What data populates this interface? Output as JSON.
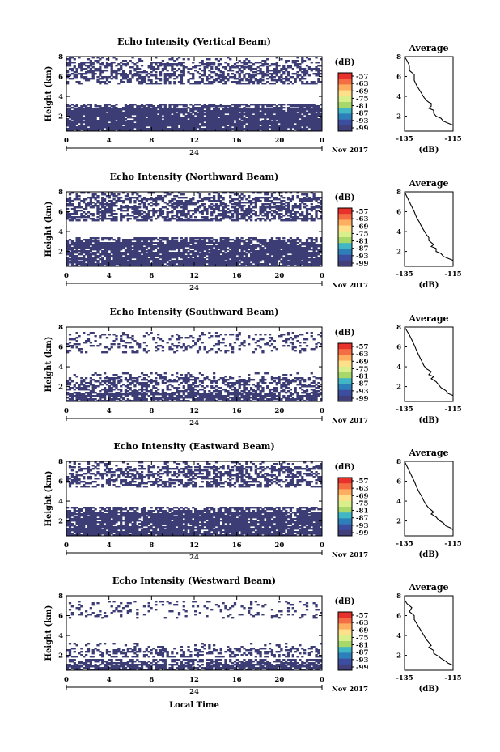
{
  "date_label": "24",
  "month_label": "Nov 2017",
  "xlabel_bottom": "Local Time",
  "colorbar": {
    "unit": "(dB)",
    "ticks": [
      "-57",
      "-63",
      "-69",
      "-75",
      "-81",
      "-87",
      "-93",
      "-99"
    ],
    "colors": [
      "#e8312a",
      "#f46d43",
      "#fdae61",
      "#fee08b",
      "#d9ef8b",
      "#a6d96a",
      "#41b6c4",
      "#2c7fb8",
      "#3b4ea0",
      "#41407a"
    ]
  },
  "chart_data": [
    {
      "type": "heatmap",
      "title": "Echo Intensity (Vertical Beam)",
      "ylabel": "Height (km)",
      "xticks": [
        "0",
        "4",
        "8",
        "12",
        "16",
        "20",
        "0"
      ],
      "yticks": [
        "2",
        "4",
        "6",
        "8"
      ],
      "ylim": [
        0.5,
        8
      ],
      "xlim": [
        0,
        24
      ],
      "layers": [
        [
          0.5,
          3.2,
          0.08
        ],
        [
          5.2,
          7.9,
          0.52
        ]
      ],
      "average": {
        "title": "Average",
        "xlabel": "(dB)",
        "xticks": [
          "-135",
          "-115"
        ],
        "yticks": [
          "2",
          "4",
          "6",
          "8"
        ],
        "xlim": [
          -135,
          -115
        ],
        "ylim": [
          0.5,
          8
        ],
        "profile": [
          [
            -135,
            8
          ],
          [
            -134,
            7.6
          ],
          [
            -133,
            7.1
          ],
          [
            -133,
            6.6
          ],
          [
            -131,
            6.2
          ],
          [
            -131,
            5.6
          ],
          [
            -130,
            5.1
          ],
          [
            -129,
            4.7
          ],
          [
            -128,
            4.3
          ],
          [
            -127,
            3.9
          ],
          [
            -126,
            3.6
          ],
          [
            -125,
            3.4
          ],
          [
            -124,
            3.3
          ],
          [
            -124,
            3.0
          ],
          [
            -125,
            2.8
          ],
          [
            -123,
            2.6
          ],
          [
            -123,
            2.3
          ],
          [
            -122,
            2.0
          ],
          [
            -120,
            1.8
          ],
          [
            -119,
            1.5
          ],
          [
            -117,
            1.3
          ],
          [
            -115,
            1.1
          ]
        ]
      }
    },
    {
      "type": "heatmap",
      "title": "Echo Intensity (Northward Beam)",
      "ylabel": "Height (km)",
      "xticks": [
        "0",
        "4",
        "8",
        "12",
        "16",
        "20",
        "0"
      ],
      "yticks": [
        "2",
        "4",
        "6",
        "8"
      ],
      "ylim": [
        0.5,
        8
      ],
      "xlim": [
        0,
        24
      ],
      "layers": [
        [
          0.5,
          3.4,
          0.12
        ],
        [
          5.0,
          8.0,
          0.45
        ]
      ],
      "average": {
        "title": "Average",
        "xlabel": "(dB)",
        "xticks": [
          "-135",
          "-115"
        ],
        "yticks": [
          "2",
          "4",
          "6",
          "8"
        ],
        "xlim": [
          -135,
          -115
        ],
        "ylim": [
          0.5,
          8
        ],
        "profile": [
          [
            -135,
            8
          ],
          [
            -134,
            7.5
          ],
          [
            -133,
            7.0
          ],
          [
            -132,
            6.5
          ],
          [
            -131,
            6.0
          ],
          [
            -130,
            5.4
          ],
          [
            -129,
            5.0
          ],
          [
            -128,
            4.5
          ],
          [
            -127,
            4.1
          ],
          [
            -126,
            3.7
          ],
          [
            -125,
            3.4
          ],
          [
            -125,
            3.1
          ],
          [
            -124,
            2.9
          ],
          [
            -123,
            2.7
          ],
          [
            -124,
            2.5
          ],
          [
            -122,
            2.3
          ],
          [
            -122,
            2.0
          ],
          [
            -120,
            1.8
          ],
          [
            -119,
            1.5
          ],
          [
            -117,
            1.3
          ],
          [
            -115,
            1.1
          ]
        ]
      }
    },
    {
      "type": "heatmap",
      "title": "Echo Intensity (Southward Beam)",
      "ylabel": "Height (km)",
      "xticks": [
        "0",
        "4",
        "8",
        "12",
        "16",
        "20",
        "0"
      ],
      "yticks": [
        "2",
        "4",
        "6",
        "8"
      ],
      "ylim": [
        0.5,
        8
      ],
      "xlim": [
        0,
        24
      ],
      "layers": [
        [
          0.5,
          1.7,
          0.25
        ],
        [
          1.8,
          3.4,
          0.55
        ],
        [
          5.3,
          7.9,
          0.78
        ]
      ],
      "average": {
        "title": "Average",
        "xlabel": "(dB)",
        "xticks": [
          "-135",
          "-115"
        ],
        "yticks": [
          "2",
          "4",
          "6",
          "8"
        ],
        "xlim": [
          -135,
          -115
        ],
        "ylim": [
          0.5,
          8
        ],
        "profile": [
          [
            -135,
            8
          ],
          [
            -134,
            7.6
          ],
          [
            -133,
            7.2
          ],
          [
            -132,
            6.7
          ],
          [
            -131,
            6.2
          ],
          [
            -130,
            5.6
          ],
          [
            -129,
            5.1
          ],
          [
            -128,
            4.6
          ],
          [
            -127,
            4.1
          ],
          [
            -126,
            3.8
          ],
          [
            -124,
            3.5
          ],
          [
            -125,
            3.2
          ],
          [
            -123,
            3.0
          ],
          [
            -124,
            2.8
          ],
          [
            -122,
            2.5
          ],
          [
            -121,
            2.2
          ],
          [
            -120,
            1.9
          ],
          [
            -118,
            1.6
          ],
          [
            -117,
            1.3
          ],
          [
            -115,
            1.1
          ]
        ]
      }
    },
    {
      "type": "heatmap",
      "title": "Echo Intensity (Eastward Beam)",
      "ylabel": "Height (km)",
      "xticks": [
        "0",
        "4",
        "8",
        "12",
        "16",
        "20",
        "0"
      ],
      "yticks": [
        "2",
        "4",
        "6",
        "8"
      ],
      "ylim": [
        0.5,
        8
      ],
      "xlim": [
        0,
        24
      ],
      "layers": [
        [
          0.5,
          3.4,
          0.12
        ],
        [
          5.3,
          8.0,
          0.52
        ]
      ],
      "average": {
        "title": "Average",
        "xlabel": "(dB)",
        "xticks": [
          "-135",
          "-115"
        ],
        "yticks": [
          "2",
          "4",
          "6",
          "8"
        ],
        "xlim": [
          -135,
          -115
        ],
        "ylim": [
          0.5,
          8
        ],
        "profile": [
          [
            -135,
            8
          ],
          [
            -134,
            7.5
          ],
          [
            -133,
            7.0
          ],
          [
            -132,
            6.5
          ],
          [
            -131,
            6.0
          ],
          [
            -130,
            5.4
          ],
          [
            -129,
            4.9
          ],
          [
            -128,
            4.5
          ],
          [
            -127,
            4.0
          ],
          [
            -126,
            3.6
          ],
          [
            -125,
            3.3
          ],
          [
            -124,
            3.1
          ],
          [
            -123,
            2.9
          ],
          [
            -124,
            2.7
          ],
          [
            -122,
            2.4
          ],
          [
            -121,
            2.1
          ],
          [
            -119,
            1.8
          ],
          [
            -118,
            1.5
          ],
          [
            -116,
            1.3
          ],
          [
            -115,
            1.1
          ]
        ]
      }
    },
    {
      "type": "heatmap",
      "title": "Echo Intensity (Westward Beam)",
      "ylabel": "Height (km)",
      "xticks": [
        "0",
        "4",
        "8",
        "12",
        "16",
        "20",
        "0"
      ],
      "yticks": [
        "2",
        "4",
        "6",
        "8"
      ],
      "ylim": [
        0.5,
        8
      ],
      "xlim": [
        0,
        24
      ],
      "layers": [
        [
          0.5,
          1.6,
          0.22
        ],
        [
          1.7,
          3.2,
          0.6
        ],
        [
          5.6,
          7.9,
          0.85
        ]
      ],
      "average": {
        "title": "Average",
        "xlabel": "(dB)",
        "xticks": [
          "-135",
          "-115"
        ],
        "yticks": [
          "2",
          "4",
          "6",
          "8"
        ],
        "xlim": [
          -135,
          -115
        ],
        "ylim": [
          0.5,
          8
        ],
        "profile": [
          [
            -135,
            8
          ],
          [
            -135,
            7.6
          ],
          [
            -134,
            7.2
          ],
          [
            -132,
            6.8
          ],
          [
            -133,
            6.4
          ],
          [
            -131,
            6.0
          ],
          [
            -131,
            5.6
          ],
          [
            -130,
            5.2
          ],
          [
            -129,
            4.8
          ],
          [
            -128,
            4.4
          ],
          [
            -127,
            4.0
          ],
          [
            -126,
            3.6
          ],
          [
            -125,
            3.3
          ],
          [
            -124,
            3.0
          ],
          [
            -125,
            2.8
          ],
          [
            -123,
            2.5
          ],
          [
            -123,
            2.2
          ],
          [
            -121,
            1.9
          ],
          [
            -120,
            1.7
          ],
          [
            -118,
            1.4
          ],
          [
            -117,
            1.2
          ],
          [
            -115,
            1.0
          ]
        ]
      }
    }
  ]
}
